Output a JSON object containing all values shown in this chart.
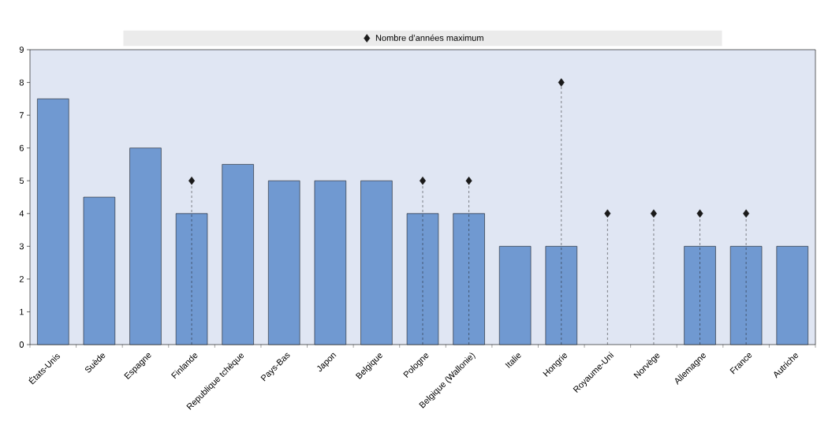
{
  "chart_data": {
    "type": "bar",
    "categories": [
      "États-Unis",
      "Suède",
      "Espagne",
      "Finlande",
      "Republique tchèque",
      "Pays-Bas",
      "Japon",
      "Belgique",
      "Pologne",
      "Belgique (Wallonie)",
      "Italie",
      "Hongrie",
      "Royaume-Uni",
      "Norvège",
      "Allemagne",
      "France",
      "Autriche"
    ],
    "series": [
      {
        "color": "#7099d1",
        "values": [
          7.5,
          4.5,
          6,
          4,
          5.5,
          5,
          5,
          5,
          4,
          4,
          3,
          3,
          null,
          null,
          3,
          3,
          3
        ]
      },
      {
        "type": "lollipop",
        "name": "Nombre d’années maximum",
        "color": "#1a1a1a",
        "marker": "diamond",
        "line_style": "dashed",
        "values": [
          null,
          null,
          null,
          5,
          null,
          null,
          null,
          null,
          5,
          5,
          null,
          8,
          4,
          4,
          4,
          4,
          null
        ]
      }
    ],
    "ylim": [
      0,
      9
    ],
    "yticks": [
      0,
      1,
      2,
      3,
      4,
      5,
      6,
      7,
      8,
      9
    ],
    "legend": "top"
  }
}
